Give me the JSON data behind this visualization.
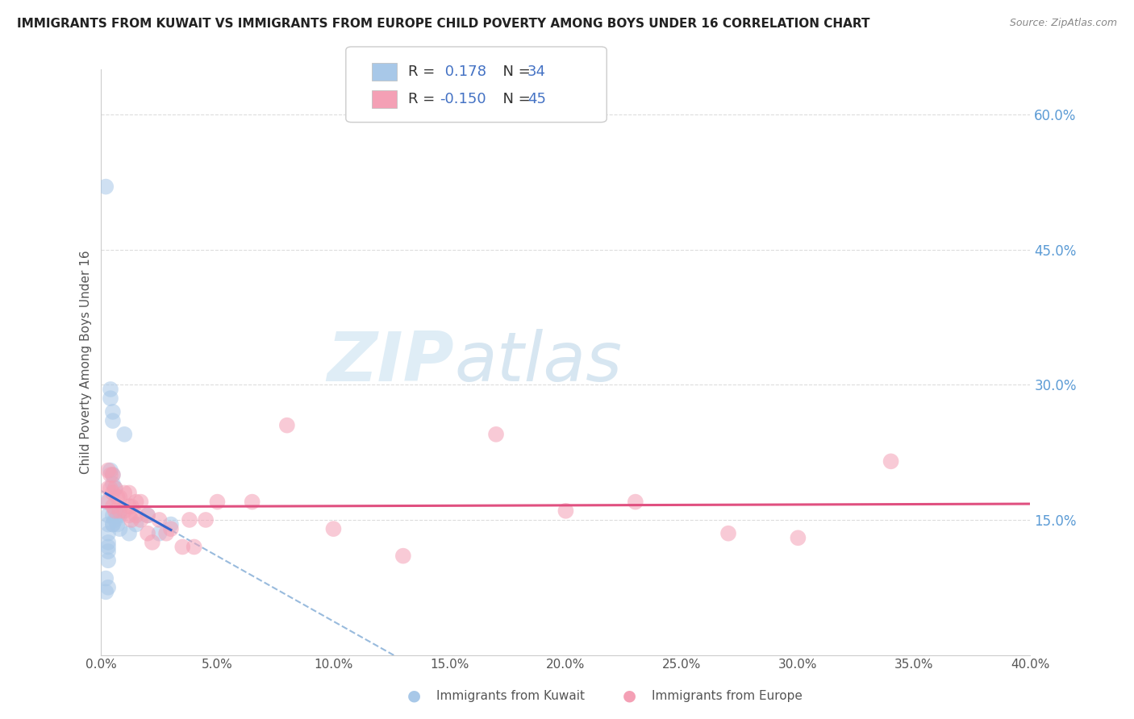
{
  "title": "IMMIGRANTS FROM KUWAIT VS IMMIGRANTS FROM EUROPE CHILD POVERTY AMONG BOYS UNDER 16 CORRELATION CHART",
  "source": "Source: ZipAtlas.com",
  "ylabel": "Child Poverty Among Boys Under 16",
  "xmin": 0.0,
  "xmax": 0.4,
  "ymin": 0.0,
  "ymax": 0.65,
  "yticks": [
    0.15,
    0.3,
    0.45,
    0.6
  ],
  "ytick_labels": [
    "15.0%",
    "30.0%",
    "45.0%",
    "60.0%"
  ],
  "color_kuwait": "#a8c8e8",
  "color_europe": "#f4a0b5",
  "color_kuwait_line": "#3366cc",
  "color_europe_line": "#e05080",
  "color_dashed": "#99bbdd",
  "watermark_zip": "ZIP",
  "watermark_atlas": "atlas",
  "kuwait_x": [
    0.002,
    0.002,
    0.003,
    0.003,
    0.003,
    0.003,
    0.003,
    0.003,
    0.003,
    0.003,
    0.004,
    0.004,
    0.004,
    0.005,
    0.005,
    0.005,
    0.005,
    0.005,
    0.005,
    0.005,
    0.006,
    0.006,
    0.007,
    0.007,
    0.008,
    0.008,
    0.01,
    0.012,
    0.015,
    0.02,
    0.025,
    0.03,
    0.002,
    0.002
  ],
  "kuwait_y": [
    0.52,
    0.17,
    0.155,
    0.145,
    0.135,
    0.125,
    0.12,
    0.115,
    0.105,
    0.075,
    0.295,
    0.285,
    0.205,
    0.27,
    0.26,
    0.2,
    0.19,
    0.155,
    0.145,
    0.145,
    0.185,
    0.15,
    0.155,
    0.145,
    0.155,
    0.14,
    0.245,
    0.135,
    0.145,
    0.155,
    0.135,
    0.145,
    0.085,
    0.07
  ],
  "europe_x": [
    0.003,
    0.003,
    0.003,
    0.004,
    0.004,
    0.005,
    0.005,
    0.005,
    0.006,
    0.006,
    0.007,
    0.008,
    0.008,
    0.01,
    0.01,
    0.012,
    0.012,
    0.012,
    0.013,
    0.013,
    0.015,
    0.015,
    0.017,
    0.017,
    0.02,
    0.02,
    0.022,
    0.025,
    0.028,
    0.03,
    0.035,
    0.038,
    0.04,
    0.045,
    0.05,
    0.065,
    0.08,
    0.1,
    0.13,
    0.17,
    0.2,
    0.23,
    0.27,
    0.3,
    0.34
  ],
  "europe_y": [
    0.205,
    0.185,
    0.17,
    0.2,
    0.185,
    0.2,
    0.18,
    0.165,
    0.185,
    0.16,
    0.175,
    0.175,
    0.16,
    0.18,
    0.16,
    0.18,
    0.165,
    0.155,
    0.165,
    0.15,
    0.17,
    0.155,
    0.17,
    0.15,
    0.155,
    0.135,
    0.125,
    0.15,
    0.135,
    0.14,
    0.12,
    0.15,
    0.12,
    0.15,
    0.17,
    0.17,
    0.255,
    0.14,
    0.11,
    0.245,
    0.16,
    0.17,
    0.135,
    0.13,
    0.215
  ]
}
